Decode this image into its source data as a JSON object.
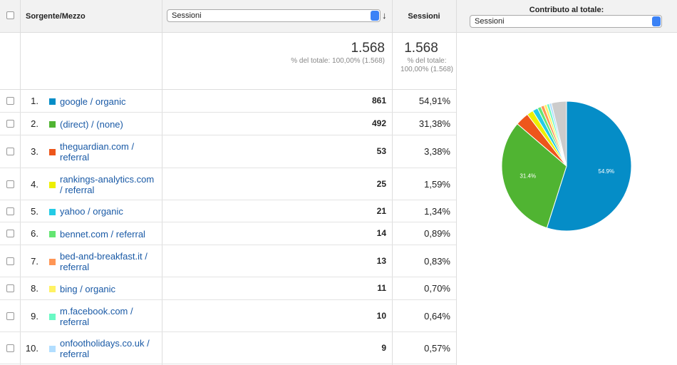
{
  "header": {
    "source": "Sorgente/Mezzo",
    "metric_select": "Sessioni",
    "sessions": "Sessioni",
    "contribution": "Contributo al totale:",
    "contribution_select": "Sessioni"
  },
  "totals": {
    "sessions": {
      "value": 1568,
      "label": "1.568"
    },
    "note": "% del totale: 100,00% (1.568)",
    "sessions2": {
      "value": 1568,
      "label": "1.568"
    },
    "note2": "% del totale: 100,00% (1.568)"
  },
  "rows": [
    {
      "index": "1.",
      "source": "google / organic",
      "color": "#058dc7",
      "sessions": 861,
      "percent": "54,91%"
    },
    {
      "index": "2.",
      "source": "(direct) / (none)",
      "color": "#50b432",
      "sessions": 492,
      "percent": "31,38%"
    },
    {
      "index": "3.",
      "source": "theguardian.com / referral",
      "color": "#ed561b",
      "sessions": 53,
      "percent": "3,38%"
    },
    {
      "index": "4.",
      "source": "rankings-analytics.com / referral",
      "color": "#edef00",
      "sessions": 25,
      "percent": "1,59%"
    },
    {
      "index": "5.",
      "source": "yahoo / organic",
      "color": "#24cbe5",
      "sessions": 21,
      "percent": "1,34%"
    },
    {
      "index": "6.",
      "source": "bennet.com / referral",
      "color": "#64e572",
      "sessions": 14,
      "percent": "0,89%"
    },
    {
      "index": "7.",
      "source": "bed-and-breakfast.it / referral",
      "color": "#ff9655",
      "sessions": 13,
      "percent": "0,83%"
    },
    {
      "index": "8.",
      "source": "bing / organic",
      "color": "#fff263",
      "sessions": 11,
      "percent": "0,70%"
    },
    {
      "index": "9.",
      "source": "m.facebook.com / referral",
      "color": "#6af9c4",
      "sessions": 10,
      "percent": "0,64%"
    },
    {
      "index": "10.",
      "source": "onfootholidays.co.uk / referral",
      "color": "#b2deff",
      "sessions": 9,
      "percent": "0,57%"
    }
  ],
  "pie_labels": [
    "54.9%",
    "31.4%"
  ]
}
